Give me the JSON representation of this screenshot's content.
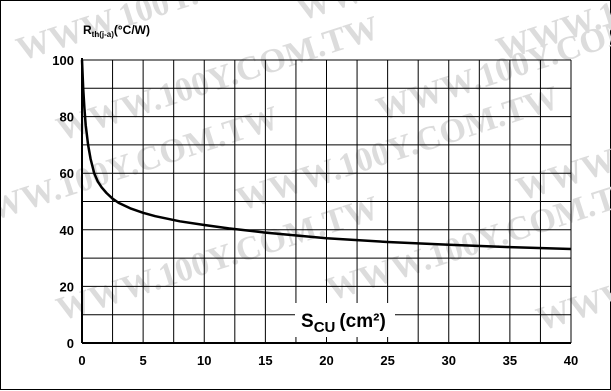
{
  "chart_data": {
    "type": "line",
    "title": "",
    "ylabel": {
      "main": "R",
      "sub": "th(j-a)",
      "unit": "(°C/W)"
    },
    "xlabel": {
      "main": "S",
      "sub": "CU",
      "unit": "(cm²)"
    },
    "xlim": [
      0,
      40
    ],
    "ylim": [
      0,
      100
    ],
    "x_ticks": [
      "0",
      "5",
      "10",
      "15",
      "20",
      "25",
      "30",
      "35",
      "40"
    ],
    "y_ticks": [
      "0",
      "20",
      "40",
      "60",
      "80",
      "100"
    ],
    "grid": true,
    "x_grid_step": 2.5,
    "y_grid_step": 10,
    "watermark": "WWW.100Y.COM.TW",
    "series": [
      {
        "x": [
          0,
          0.1,
          0.2,
          0.3,
          0.5,
          0.7,
          1,
          1.3,
          1.6,
          2,
          2.5,
          3,
          4,
          5,
          6,
          8,
          10,
          12,
          15,
          20,
          25,
          30,
          35,
          40
        ],
        "y": [
          100,
          90,
          83,
          77,
          70,
          65,
          60,
          57,
          55,
          53,
          51,
          49.5,
          47.5,
          46,
          44.8,
          43,
          41.7,
          40.5,
          39,
          37,
          35.7,
          34.7,
          33.9,
          33.2
        ]
      }
    ]
  }
}
